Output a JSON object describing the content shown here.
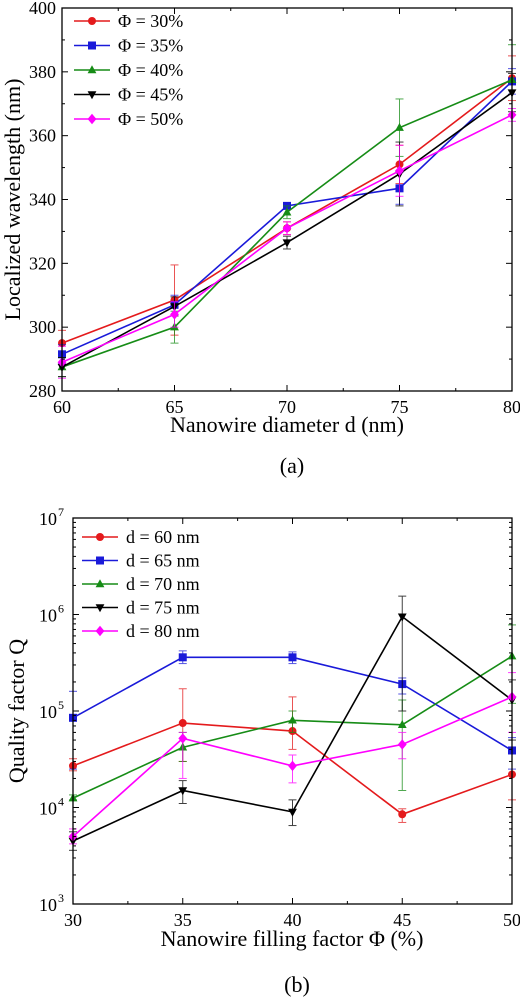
{
  "chart_data": [
    {
      "type": "line",
      "panel_label": "(a)",
      "xlabel": "Nanowire diameter d (nm)",
      "ylabel": "Localized wavelength (nm)",
      "x": [
        60,
        65,
        70,
        75,
        80
      ],
      "x_tick_labels": [
        "60",
        "65",
        "70",
        "75",
        "80"
      ],
      "xlim": [
        60,
        80
      ],
      "ylim": [
        280,
        400
      ],
      "y_ticks": [
        280,
        300,
        320,
        340,
        360,
        380,
        400
      ],
      "y_tick_labels": [
        "280",
        "300",
        "320",
        "340",
        "360",
        "380",
        "400"
      ],
      "y_scale": "linear",
      "legend_position": "top-left",
      "series": [
        {
          "name": "Φ = 30%",
          "color": "#e41a1c",
          "marker": "circle",
          "values": [
            295,
            308.5,
            331,
            351,
            378
          ],
          "errors": [
            4,
            11,
            2,
            6,
            7
          ]
        },
        {
          "name": "Φ = 35%",
          "color": "#1a1ad9",
          "marker": "square",
          "values": [
            291.5,
            307,
            338,
            343.5,
            377
          ],
          "errors": [
            3,
            3,
            1,
            5,
            4
          ]
        },
        {
          "name": "Φ = 40%",
          "color": "#168c16",
          "marker": "triangle",
          "values": [
            287.5,
            300,
            336,
            362.5,
            377.5
          ],
          "errors": [
            3,
            5,
            2,
            9,
            11
          ]
        },
        {
          "name": "Φ = 45%",
          "color": "#000000",
          "marker": "triangle-down",
          "values": [
            287.5,
            306.5,
            326.5,
            348,
            373.5
          ],
          "errors": [
            3,
            3,
            2,
            10,
            6
          ]
        },
        {
          "name": "Φ = 50%",
          "color": "#ff00ff",
          "marker": "diamond",
          "values": [
            289,
            304,
            331,
            349,
            366.5
          ],
          "errors": [
            5,
            4,
            2,
            8,
            2
          ]
        }
      ]
    },
    {
      "type": "line",
      "panel_label": "(b)",
      "xlabel": "Nanowire filling factor Φ (%)",
      "ylabel": "Quality factor Q",
      "x": [
        30,
        35,
        40,
        45,
        50
      ],
      "x_tick_labels": [
        "30",
        "35",
        "40",
        "45",
        "50"
      ],
      "xlim": [
        30,
        50
      ],
      "ylim": [
        1000,
        10000000
      ],
      "y_scale": "log",
      "y_ticks": [
        1000,
        10000,
        100000,
        1000000,
        10000000
      ],
      "y_tick_labels": [
        {
          "base": "10",
          "exp": "3"
        },
        {
          "base": "10",
          "exp": "4"
        },
        {
          "base": "10",
          "exp": "5"
        },
        {
          "base": "10",
          "exp": "6"
        },
        {
          "base": "10",
          "exp": "7"
        }
      ],
      "legend_position": "top-left",
      "series": [
        {
          "name": "d = 60 nm",
          "color": "#e41a1c",
          "marker": "circle",
          "values": [
            27000,
            75000,
            62000,
            8500,
            22000
          ],
          "err_low": [
            24000,
            30000,
            40000,
            7000,
            12000
          ],
          "err_high": [
            32000,
            170000,
            140000,
            9700,
            40000
          ]
        },
        {
          "name": "d = 65 nm",
          "color": "#1a1ad9",
          "marker": "square",
          "values": [
            85000,
            360000,
            360000,
            190000,
            39000
          ],
          "err_low": [
            25000,
            310000,
            310000,
            150000,
            25000
          ],
          "err_high": [
            160000,
            420000,
            410000,
            220000,
            53000
          ]
        },
        {
          "name": "d = 70 nm",
          "color": "#168c16",
          "marker": "triangle",
          "values": [
            12500,
            42000,
            80000,
            72000,
            370000
          ],
          "err_low": [
            12000,
            30000,
            60000,
            15000,
            120000
          ],
          "err_high": [
            13500,
            60000,
            100000,
            130000,
            780000
          ]
        },
        {
          "name": "d = 75 nm",
          "color": "#000000",
          "marker": "triangle-down",
          "values": [
            4500,
            15000,
            9000,
            950000,
            130000
          ],
          "err_low": [
            3600,
            11000,
            6500,
            100000,
            50000
          ],
          "err_high": [
            5600,
            19000,
            12000,
            1550000,
            210000
          ]
        },
        {
          "name": "d = 80 nm",
          "color": "#ff00ff",
          "marker": "diamond",
          "values": [
            5000,
            52000,
            27000,
            45000,
            140000
          ],
          "err_low": [
            4200,
            20000,
            18000,
            32000,
            60000
          ],
          "err_high": [
            6000,
            60000,
            35000,
            60000,
            250000
          ]
        }
      ]
    }
  ]
}
